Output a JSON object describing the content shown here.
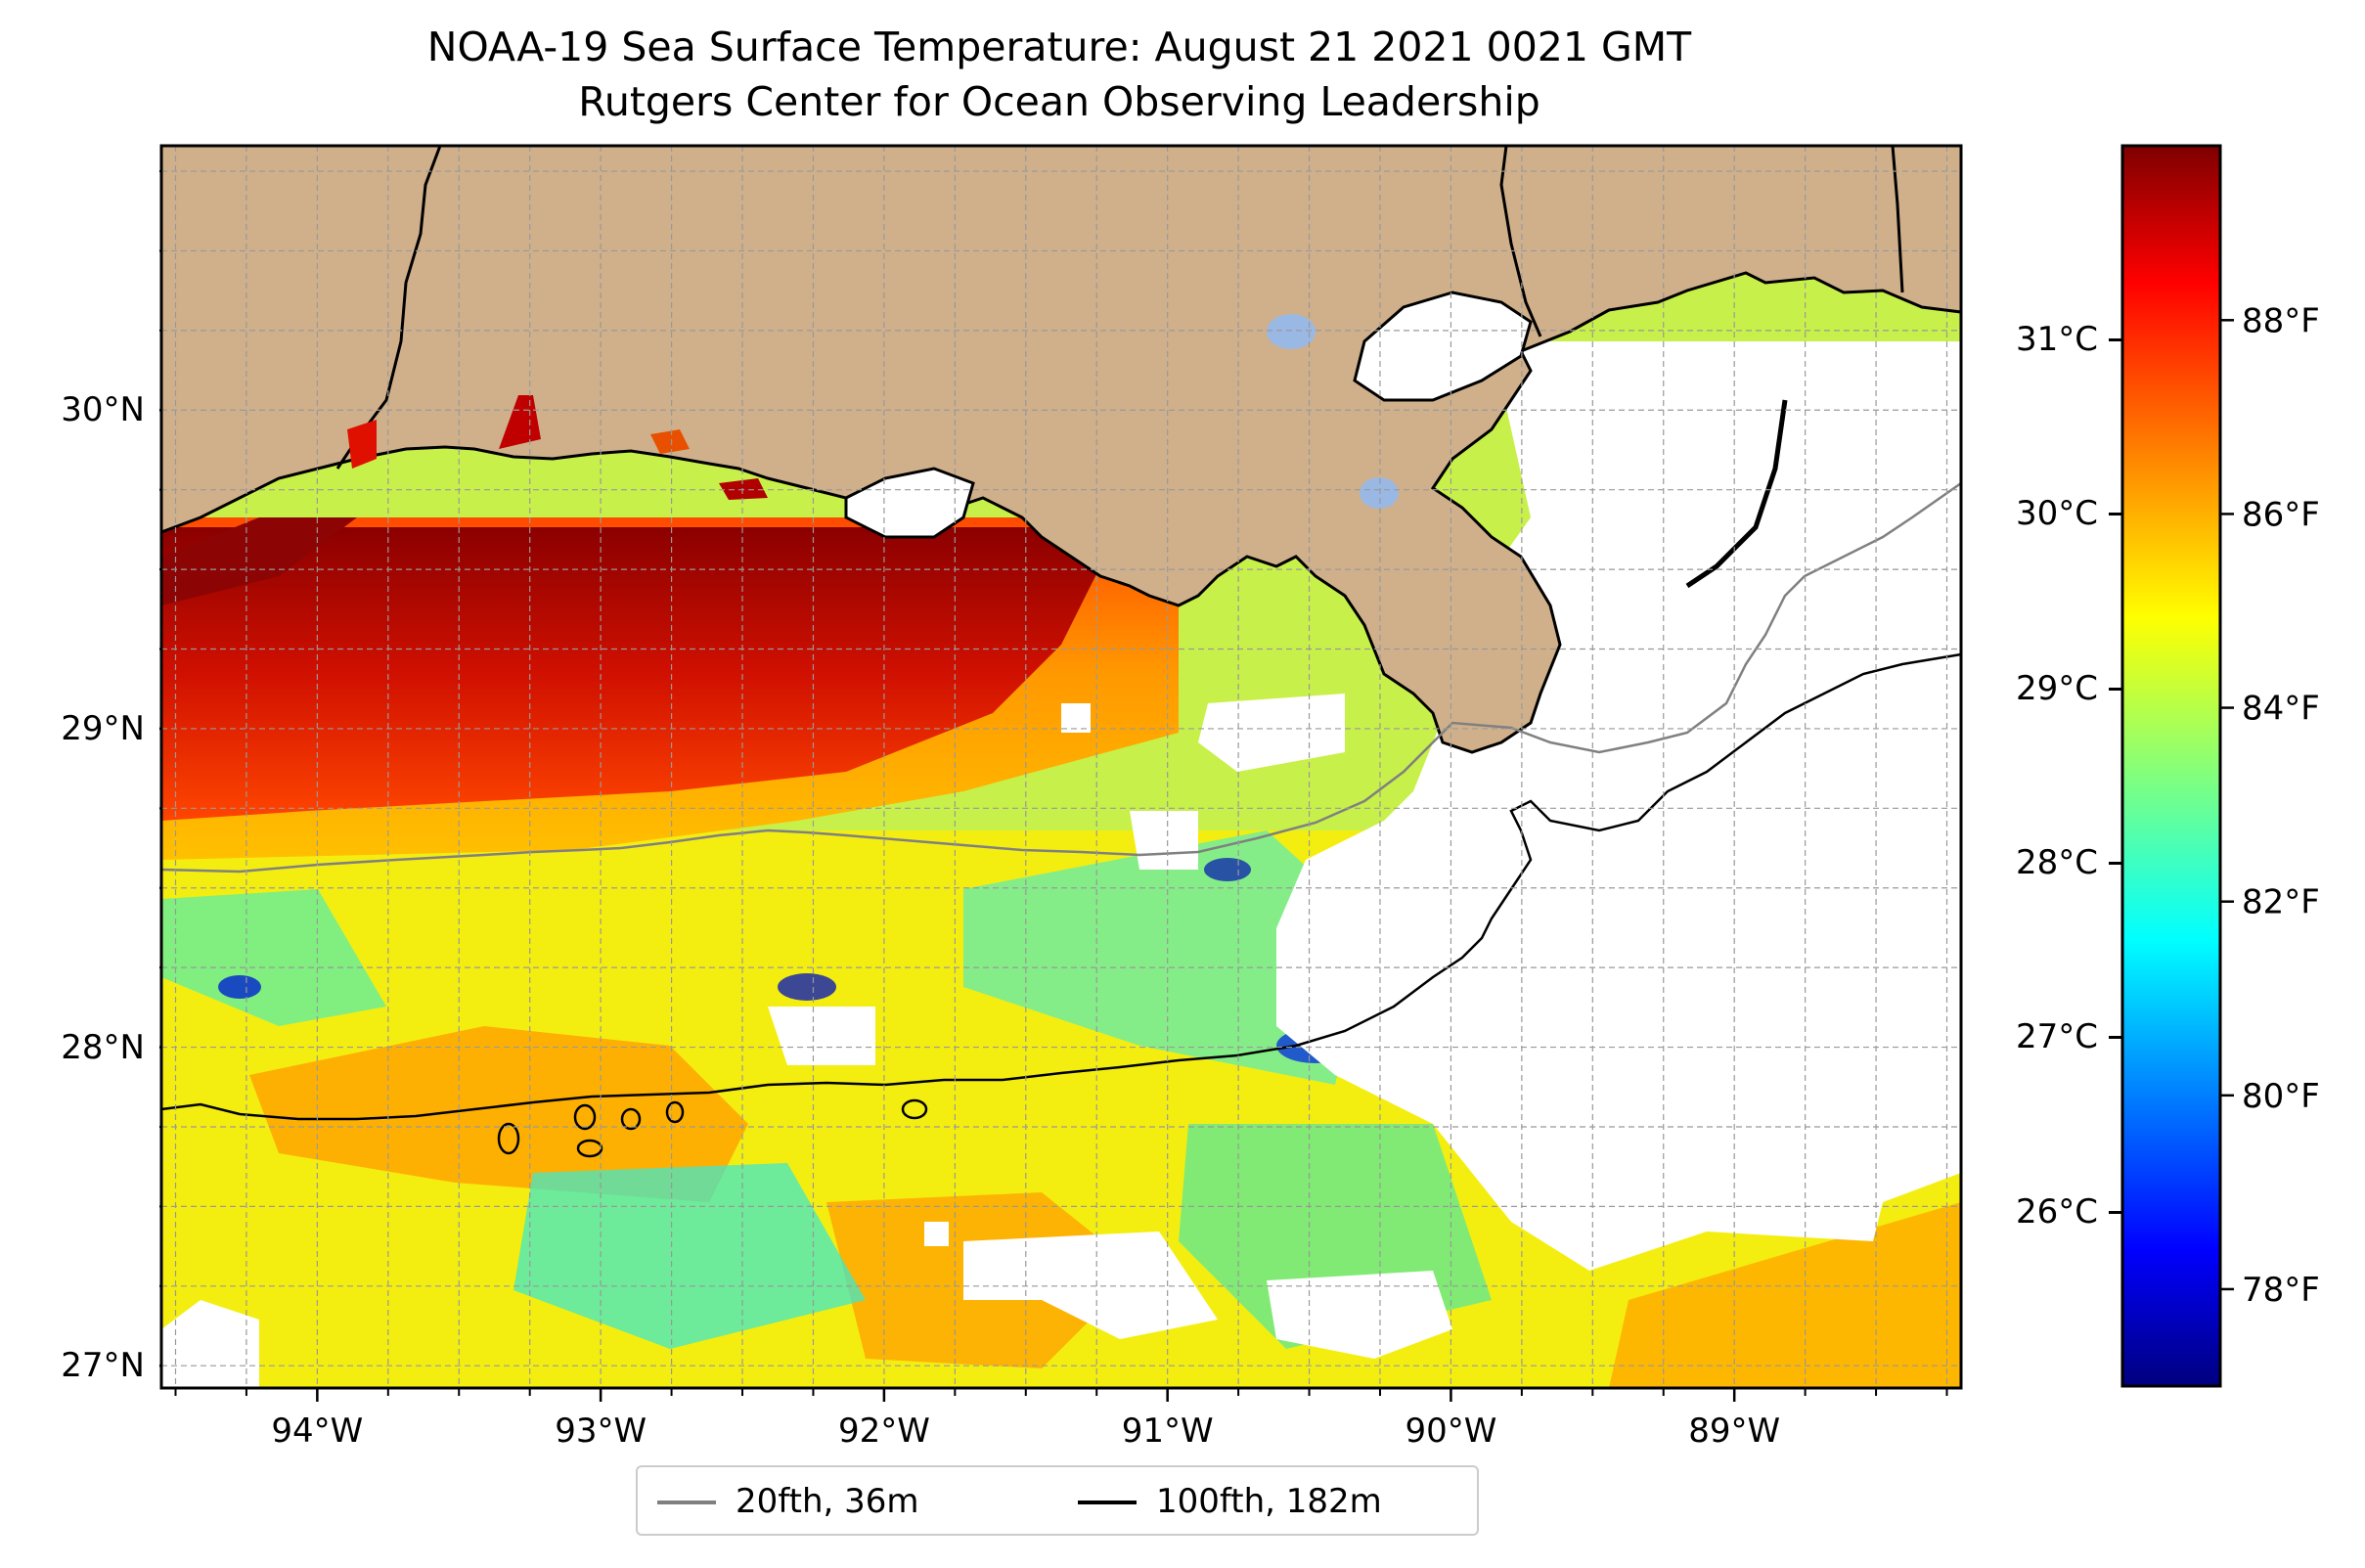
{
  "title": {
    "line1": "NOAA-19 Sea Surface Temperature: August 21 2021 0021 GMT",
    "line2": "Rutgers Center for Ocean Observing Leadership"
  },
  "map": {
    "lon_range": [
      -94.55,
      -88.2
    ],
    "lat_range": [
      26.93,
      30.83
    ],
    "x_ticks": [
      {
        "lon": -94,
        "label": "94°W"
      },
      {
        "lon": -93,
        "label": "93°W"
      },
      {
        "lon": -92,
        "label": "92°W"
      },
      {
        "lon": -91,
        "label": "91°W"
      },
      {
        "lon": -90,
        "label": "90°W"
      },
      {
        "lon": -89,
        "label": "89°W"
      }
    ],
    "y_ticks": [
      {
        "lat": 27,
        "label": "27°N"
      },
      {
        "lat": 28,
        "label": "28°N"
      },
      {
        "lat": 29,
        "label": "29°N"
      },
      {
        "lat": 30,
        "label": "30°N"
      }
    ],
    "gridlines": true,
    "colors": {
      "land": "#d0b08a",
      "no_data": "#ffffff",
      "lakes": "#9ab8e4",
      "isobath_20fth": "#808080",
      "isobath_100fth": "#000000"
    }
  },
  "colorbar": {
    "colormap": "jet",
    "f_range": [
      77.0,
      89.8
    ],
    "celsius_ticks": [
      "26°C",
      "27°C",
      "28°C",
      "29°C",
      "30°C",
      "31°C"
    ],
    "fahrenheit_ticks": [
      "78°F",
      "80°F",
      "82°F",
      "84°F",
      "86°F",
      "88°F"
    ]
  },
  "legend": {
    "items": [
      {
        "label": "20fth, 36m",
        "color": "#808080"
      },
      {
        "label": "100fth, 182m",
        "color": "#000000"
      }
    ]
  }
}
